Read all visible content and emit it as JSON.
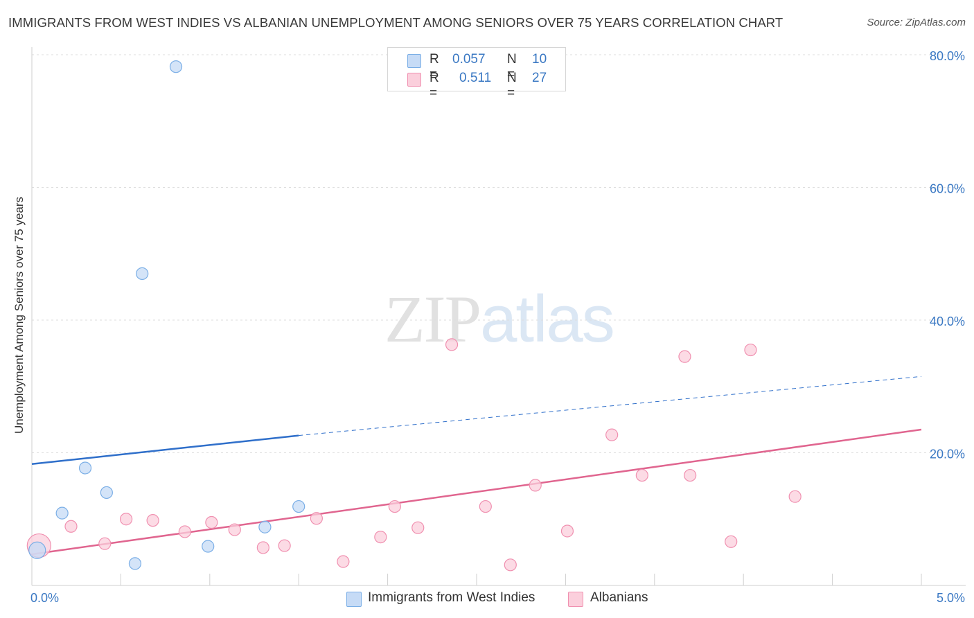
{
  "title": "IMMIGRANTS FROM WEST INDIES VS ALBANIAN UNEMPLOYMENT AMONG SENIORS OVER 75 YEARS CORRELATION CHART",
  "source": "Source: ZipAtlas.com",
  "watermark": {
    "zip": "ZIP",
    "atlas": "atlas"
  },
  "legend": {
    "r_label": "R =",
    "n_label": "N =",
    "series": [
      {
        "name": "Immigrants from West Indies",
        "r": "0.057",
        "n": "10",
        "color": "#7aaee6",
        "fill": "#c6dbf6",
        "line": "#2f6fca"
      },
      {
        "name": "Albanians",
        "r": "0.511",
        "n": "27",
        "color": "#f090b0",
        "fill": "#fbcfdc",
        "line": "#e0658f"
      }
    ]
  },
  "chart_data": {
    "type": "scatter",
    "title": "IMMIGRANTS FROM WEST INDIES VS ALBANIAN UNEMPLOYMENT AMONG SENIORS OVER 75 YEARS CORRELATION CHART",
    "xlabel": "",
    "ylabel": "Unemployment Among Seniors over 75 years",
    "xlim": [
      0,
      5
    ],
    "ylim": [
      0,
      80
    ],
    "x_tick_labels": [
      "0.0%",
      "5.0%"
    ],
    "y_ticks": [
      20,
      40,
      60,
      80
    ],
    "y_tick_labels": [
      "20.0%",
      "40.0%",
      "60.0%",
      "80.0%"
    ],
    "grid": true,
    "series": [
      {
        "name": "Immigrants from West Indies",
        "points": [
          [
            0.03,
            5.3
          ],
          [
            0.17,
            10.9
          ],
          [
            0.3,
            17.7
          ],
          [
            0.42,
            14.0
          ],
          [
            0.58,
            3.3
          ],
          [
            0.62,
            47.0
          ],
          [
            0.81,
            78.2
          ],
          [
            0.99,
            5.9
          ],
          [
            1.31,
            8.8
          ],
          [
            1.5,
            11.9
          ]
        ],
        "trend": {
          "x": [
            0,
            1.5
          ],
          "y": [
            18.3,
            22.6
          ],
          "extended_to": [
            5.0,
            31.5
          ]
        }
      },
      {
        "name": "Albanians",
        "points": [
          [
            0.04,
            6.0
          ],
          [
            0.22,
            8.9
          ],
          [
            0.41,
            6.3
          ],
          [
            0.53,
            10.0
          ],
          [
            0.68,
            9.8
          ],
          [
            0.86,
            8.1
          ],
          [
            1.01,
            9.5
          ],
          [
            1.14,
            8.4
          ],
          [
            1.3,
            5.7
          ],
          [
            1.42,
            6.0
          ],
          [
            1.6,
            10.1
          ],
          [
            1.75,
            3.6
          ],
          [
            1.96,
            7.3
          ],
          [
            2.04,
            11.9
          ],
          [
            2.17,
            8.7
          ],
          [
            2.36,
            36.3
          ],
          [
            2.55,
            11.9
          ],
          [
            2.69,
            3.1
          ],
          [
            2.83,
            15.1
          ],
          [
            3.01,
            8.2
          ],
          [
            3.26,
            22.7
          ],
          [
            3.43,
            16.6
          ],
          [
            3.67,
            34.5
          ],
          [
            3.7,
            16.6
          ],
          [
            3.93,
            6.6
          ],
          [
            4.04,
            35.5
          ],
          [
            4.29,
            13.4
          ]
        ],
        "trend": {
          "x": [
            0,
            5.0
          ],
          "y": [
            4.7,
            23.5
          ]
        }
      }
    ]
  }
}
